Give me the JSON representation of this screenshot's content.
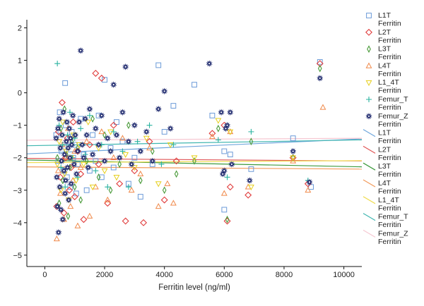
{
  "chart_data": {
    "type": "scatter",
    "title": "",
    "xlabel": "Ferritin level (ng/ml)",
    "ylabel": "",
    "xlim": [
      -600,
      10600
    ],
    "ylim": [
      -5.35,
      2.25
    ],
    "x_ticks": [
      0,
      2000,
      4000,
      6000,
      8000,
      10000
    ],
    "y_ticks": [
      2,
      1,
      0,
      -1,
      -2,
      -3,
      -4,
      -5
    ],
    "x_tick_labels": [
      "0",
      "2000",
      "4000",
      "6000",
      "8000",
      "10000"
    ],
    "y_tick_labels": [
      "2",
      "1",
      "0",
      "−1",
      "−2",
      "−3",
      "−4",
      "−5"
    ],
    "grid": false,
    "legend_position": "right",
    "series": [
      {
        "name": "L1T",
        "marker": "square",
        "color": "#6b9ad8",
        "x": [
          380,
          450,
          500,
          560,
          620,
          680,
          700,
          740,
          800,
          850,
          900,
          950,
          1000,
          1050,
          1100,
          1200,
          1300,
          1400,
          1500,
          1600,
          1700,
          1800,
          1900,
          2000,
          2200,
          2300,
          2400,
          2600,
          2800,
          3000,
          3200,
          3600,
          3800,
          4000,
          4300,
          5000,
          5600,
          6000,
          6000,
          6200,
          6900,
          8300,
          8900,
          9200
        ],
        "y": [
          -1.3,
          -2.1,
          -0.6,
          -1.8,
          -2.4,
          0.3,
          -1.0,
          -2.6,
          -1.5,
          -2.9,
          -1.2,
          -2.0,
          -1.6,
          -3.1,
          -2.2,
          -0.8,
          -1.9,
          -3.0,
          -2.4,
          -1.3,
          -2.1,
          -0.7,
          -2.6,
          0.4,
          -1.7,
          -2.3,
          -0.9,
          -1.5,
          -2.8,
          -2.0,
          -3.2,
          -2.2,
          0.85,
          -1.2,
          -0.4,
          0.25,
          -0.7,
          -1.8,
          -3.6,
          -1.9,
          -2.35,
          -1.4,
          -2.9,
          0.95
        ]
      },
      {
        "name": "L2T",
        "marker": "diamond",
        "color": "#e03c3c",
        "x": [
          400,
          460,
          520,
          580,
          640,
          700,
          760,
          820,
          880,
          950,
          1000,
          1100,
          1200,
          1300,
          1500,
          1700,
          1800,
          1900,
          2100,
          2300,
          2500,
          2700,
          3000,
          3300,
          3500,
          4000,
          4400,
          5600,
          6000,
          6100,
          6200,
          6800,
          8300,
          8800,
          9200
        ],
        "y": [
          -3.5,
          -1.2,
          -2.6,
          -0.3,
          -3.7,
          -2.0,
          -1.4,
          -3.0,
          -2.3,
          -0.9,
          -3.2,
          -1.8,
          -2.5,
          -3.9,
          -1.6,
          0.6,
          -2.2,
          0.45,
          -3.4,
          -1.0,
          -2.8,
          -3.95,
          -2.4,
          -4.0,
          -1.5,
          -3.3,
          -2.1,
          -1.25,
          -1.0,
          -3.95,
          -2.9,
          -3.15,
          -2.0,
          -2.8,
          0.9
        ]
      },
      {
        "name": "L3T",
        "marker": "thin-diamond",
        "color": "#4a9b3a",
        "x": [
          420,
          480,
          540,
          600,
          660,
          720,
          780,
          840,
          900,
          1000,
          1100,
          1200,
          1400,
          1600,
          1800,
          2000,
          2200,
          2500,
          2800,
          3200,
          3600,
          4000,
          4400,
          5000,
          5800,
          6100,
          6900,
          8300,
          9200
        ],
        "y": [
          -2.0,
          -3.4,
          -1.1,
          -2.7,
          -0.5,
          -1.9,
          -3.8,
          -2.3,
          -1.5,
          -2.9,
          -1.7,
          -3.3,
          -2.1,
          -0.8,
          -2.6,
          -1.3,
          -3.0,
          -2.2,
          -1.0,
          -2.7,
          -1.8,
          -3.0,
          -2.5,
          -2.1,
          -1.1,
          -3.9,
          -1.5,
          -2.0,
          0.75
        ]
      },
      {
        "name": "L4T",
        "marker": "triangle-up",
        "color": "#f08a4b",
        "x": [
          400,
          450,
          520,
          580,
          640,
          700,
          780,
          860,
          940,
          1000,
          1100,
          1200,
          1400,
          1500,
          1700,
          1900,
          2100,
          2300,
          2600,
          2900,
          3200,
          3500,
          3800,
          4100,
          4300,
          5600,
          6000,
          6200,
          6800,
          8300,
          8800,
          9300
        ],
        "y": [
          -4.5,
          -2.4,
          -3.1,
          -1.6,
          -3.9,
          -2.0,
          -1.1,
          -3.5,
          -2.7,
          -1.8,
          -4.1,
          -2.3,
          -1.5,
          -3.8,
          -2.9,
          -1.2,
          -3.3,
          -2.0,
          -1.4,
          -3.0,
          -2.5,
          -1.7,
          -3.5,
          -2.8,
          -3.4,
          -1.35,
          -3.1,
          -1.2,
          -2.9,
          -2.1,
          -3.0,
          -0.45
        ]
      },
      {
        "name": "L1_4T",
        "marker": "triangle-down",
        "color": "#e6cf1c",
        "x": [
          420,
          480,
          540,
          600,
          660,
          720,
          800,
          880,
          960,
          1050,
          1150,
          1300,
          1450,
          1600,
          1800,
          2000,
          2200,
          2400,
          2700,
          3000,
          3400,
          3800,
          4200,
          5000,
          5800,
          6200,
          6900,
          8300
        ],
        "y": [
          -2.2,
          -1.5,
          -3.0,
          -0.9,
          -2.5,
          -1.8,
          -3.3,
          -2.0,
          -1.3,
          -2.7,
          -1.6,
          -2.2,
          -0.9,
          -2.9,
          -1.7,
          -2.4,
          -1.2,
          -2.6,
          -1.9,
          -2.3,
          -1.4,
          -2.8,
          -1.6,
          -2.0,
          -0.85,
          -1.2,
          -2.9,
          -2.0
        ]
      },
      {
        "name": "Femur_T",
        "marker": "plus",
        "color": "#2ab3a0",
        "x": [
          420,
          480,
          540,
          600,
          680,
          760,
          840,
          920,
          1000,
          1100,
          1200,
          1350,
          1500,
          1700,
          1900,
          2100,
          2300,
          2600,
          2800,
          3100,
          3500,
          3900,
          4300,
          5800,
          6100,
          6900,
          8800
        ],
        "y": [
          0.9,
          -1.0,
          -2.3,
          -1.6,
          -2.9,
          -1.3,
          -0.6,
          -2.0,
          -1.4,
          -2.6,
          -1.1,
          -1.9,
          -0.7,
          -2.4,
          -1.6,
          -2.9,
          -1.2,
          -1.8,
          -2.9,
          -1.5,
          -1.0,
          -2.2,
          -1.6,
          -1.45,
          -2.6,
          -1.2,
          -2.7
        ]
      },
      {
        "name": "Femur_Z",
        "marker": "star",
        "color": "#1f2a6e",
        "x": [
          380,
          400,
          420,
          440,
          460,
          480,
          500,
          520,
          540,
          560,
          580,
          600,
          620,
          640,
          660,
          680,
          700,
          720,
          740,
          760,
          780,
          800,
          820,
          840,
          860,
          880,
          900,
          940,
          980,
          1020,
          1060,
          1100,
          1150,
          1200,
          1250,
          1300,
          1350,
          1400,
          1450,
          1500,
          1600,
          1700,
          1800,
          1900,
          2000,
          2100,
          2200,
          2300,
          2400,
          2500,
          2600,
          2700,
          2800,
          2900,
          3000,
          3200,
          3400,
          3600,
          3800,
          4000,
          4200,
          5500,
          5900,
          5950,
          6000,
          6050,
          6100,
          6200,
          6250,
          6850,
          8300,
          8850,
          9200
        ],
        "y": [
          -1.4,
          -2.6,
          -3.5,
          -1.1,
          -4.3,
          -0.8,
          -2.9,
          -1.7,
          -3.6,
          -2.1,
          -1.3,
          -3.9,
          -0.6,
          -2.4,
          -1.9,
          -3.1,
          -2.7,
          -1.5,
          -0.9,
          -2.3,
          -1.7,
          -3.3,
          -1.1,
          -2.0,
          -1.4,
          -2.8,
          -1.6,
          -0.7,
          -2.2,
          -1.3,
          -2.5,
          -1.8,
          -0.9,
          1.3,
          -1.6,
          -2.0,
          -0.8,
          -1.3,
          -2.3,
          -0.5,
          -1.9,
          -1.1,
          -1.6,
          -0.7,
          -2.1,
          -1.4,
          -1.8,
          0.25,
          -1.3,
          -2.0,
          -0.6,
          0.8,
          -1.5,
          -2.2,
          -1.0,
          -1.8,
          -1.2,
          -2.1,
          -0.5,
          0.05,
          -1.1,
          0.9,
          -0.6,
          -2.5,
          -2.4,
          -1.1,
          -1.0,
          -0.6,
          -2.2,
          -2.7,
          -1.8,
          -2.75,
          0.45
        ]
      }
    ],
    "fit_lines": [
      {
        "name": "L1T",
        "color": "#6ea6dc",
        "x": [
          -600,
          10600
        ],
        "y": [
          -1.88,
          -1.42
        ]
      },
      {
        "name": "L2T",
        "color": "#e05555",
        "x": [
          -600,
          10600
        ],
        "y": [
          -2.02,
          -2.1
        ]
      },
      {
        "name": "L3T",
        "color": "#3d9a3d",
        "x": [
          -600,
          10600
        ],
        "y": [
          -2.07,
          -2.28
        ]
      },
      {
        "name": "L4T",
        "color": "#f29a5a",
        "x": [
          -600,
          10600
        ],
        "y": [
          -2.28,
          -2.35
        ]
      },
      {
        "name": "L1_4T",
        "color": "#f0dd55",
        "x": [
          -600,
          10600
        ],
        "y": [
          -2.15,
          -2.09
        ]
      },
      {
        "name": "Femur_T",
        "color": "#3fb6b0",
        "x": [
          -600,
          10600
        ],
        "y": [
          -1.63,
          -1.45
        ]
      },
      {
        "name": "Femur_Z",
        "color": "#f6c8d2",
        "x": [
          -600,
          10600
        ],
        "y": [
          -1.46,
          -1.4
        ]
      }
    ],
    "legend_entries": [
      {
        "label": "L1T",
        "sublabel": "Ferritin",
        "kind": "marker",
        "series": "L1T",
        "color": "#6b9ad8"
      },
      {
        "label": "L2T",
        "sublabel": "Ferritin",
        "kind": "marker",
        "series": "L2T",
        "color": "#e03c3c"
      },
      {
        "label": "L3T",
        "sublabel": "Ferritin",
        "kind": "marker",
        "series": "L3T",
        "color": "#4a9b3a"
      },
      {
        "label": "L4T",
        "sublabel": "Ferritin",
        "kind": "marker",
        "series": "L4T",
        "color": "#f08a4b"
      },
      {
        "label": "L1_4T",
        "sublabel": "Ferritin",
        "kind": "marker",
        "series": "L1_4T",
        "color": "#e6cf1c"
      },
      {
        "label": "Femur_T",
        "sublabel": "Ferritin",
        "kind": "marker",
        "series": "Femur_T",
        "color": "#2ab3a0"
      },
      {
        "label": "Femur_Z",
        "sublabel": "Ferritin",
        "kind": "marker",
        "series": "Femur_Z",
        "color": "#1f2a6e"
      },
      {
        "label": "L1T",
        "sublabel": "Ferritin",
        "kind": "line",
        "series": "L1T",
        "color": "#6ea6dc"
      },
      {
        "label": "L2T",
        "sublabel": "Ferritin",
        "kind": "line",
        "series": "L2T",
        "color": "#e05555"
      },
      {
        "label": "L3T",
        "sublabel": "Ferritin",
        "kind": "line",
        "series": "L3T",
        "color": "#3d9a3d"
      },
      {
        "label": "L4T",
        "sublabel": "Ferritin",
        "kind": "line",
        "series": "L4T",
        "color": "#f29a5a"
      },
      {
        "label": "L1_4T",
        "sublabel": "Ferritin",
        "kind": "line",
        "series": "L1_4T",
        "color": "#f0dd55"
      },
      {
        "label": "Femur_T",
        "sublabel": "Ferritin",
        "kind": "line",
        "series": "Femur_T",
        "color": "#3fb6b0"
      },
      {
        "label": "Femur_Z",
        "sublabel": "Ferritin",
        "kind": "line",
        "series": "Femur_Z",
        "color": "#f6c8d2"
      }
    ]
  }
}
